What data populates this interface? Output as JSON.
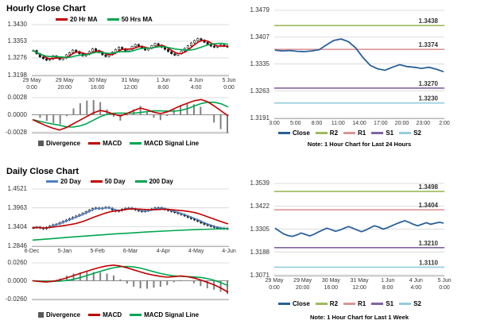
{
  "legends": {
    "hourly_ma": [
      {
        "label": "20 Hr MA",
        "color": "#C00000",
        "type": "line"
      },
      {
        "label": "50 Hrs MA",
        "color": "#00A64F",
        "type": "line"
      }
    ],
    "daily_ma": [
      {
        "label": "20 Day",
        "color": "#4F81BD",
        "type": "line"
      },
      {
        "label": "50 Day",
        "color": "#C00000",
        "type": "line"
      },
      {
        "label": "200 Day",
        "color": "#00A64F",
        "type": "line"
      }
    ],
    "macd": [
      {
        "label": "Divergence",
        "color": "#595959",
        "type": "box"
      },
      {
        "label": "MACD",
        "color": "#C00000",
        "type": "line"
      },
      {
        "label": "MACD Signal Line",
        "color": "#00A64F",
        "type": "line"
      }
    ],
    "pivot": [
      {
        "label": "Close",
        "color": "#2A6099",
        "type": "line"
      },
      {
        "label": "R2",
        "color": "#9BBB59",
        "type": "line"
      },
      {
        "label": "R1",
        "color": "#D99694",
        "type": "line"
      },
      {
        "label": "S1",
        "color": "#8064A2",
        "type": "line"
      },
      {
        "label": "S2",
        "color": "#93CDDD",
        "type": "line"
      }
    ]
  },
  "chart_data": [
    {
      "id": "hourly_price",
      "type": "candlestick",
      "title": "Hourly Close Chart",
      "ylim": [
        1.3198,
        1.343
      ],
      "yticks": [
        1.343,
        1.3353,
        1.3276,
        1.3198
      ],
      "xtick_dates": [
        "29 May",
        "29 May",
        "30 May",
        "31 May",
        "1 Jun",
        "4 Jun",
        "5 Jun"
      ],
      "xtick_times": [
        "0:00",
        "20:00",
        "16:00",
        "12:00",
        "8:00",
        "4:00",
        "0:00"
      ],
      "close": [
        1.331,
        1.3295,
        1.328,
        1.3272,
        1.3265,
        1.327,
        1.3285,
        1.3278,
        1.3268,
        1.3275,
        1.329,
        1.33,
        1.3312,
        1.3305,
        1.3295,
        1.3285,
        1.3292,
        1.3305,
        1.3318,
        1.331,
        1.33,
        1.329,
        1.3282,
        1.329,
        1.3302,
        1.3315,
        1.3325,
        1.3318,
        1.3308,
        1.3315,
        1.3328,
        1.3338,
        1.333,
        1.332,
        1.3312,
        1.332,
        1.3332,
        1.3342,
        1.3335,
        1.3325,
        1.3315,
        1.3305,
        1.3295,
        1.3288,
        1.3295,
        1.3308,
        1.332,
        1.3332,
        1.3345,
        1.3356,
        1.3365,
        1.3358,
        1.3348,
        1.3338,
        1.333,
        1.3325,
        1.333,
        1.3336,
        1.333,
        1.3326
      ],
      "series": [
        {
          "name": "20 Hr MA",
          "color": "#C00000",
          "smooth": 4
        },
        {
          "name": "50 Hrs MA",
          "color": "#00A64F",
          "smooth": 10
        }
      ]
    },
    {
      "id": "hourly_macd",
      "type": "macd",
      "ylim": [
        -0.0028,
        0.0028
      ],
      "yticks": [
        0.0028,
        0.0,
        -0.0028
      ],
      "macd": [
        -0.0008,
        -0.0013,
        -0.0018,
        -0.0022,
        -0.0025,
        -0.0021,
        -0.0015,
        -0.0009,
        -0.0003,
        0.0003,
        0.0007,
        0.0005,
        0.0001,
        -0.0002,
        0.0002,
        0.0007,
        0.0011,
        0.0008,
        0.0004,
        0.0002,
        0.0005,
        0.001,
        0.0015,
        0.0019,
        0.0023,
        0.0025,
        0.0021,
        0.0014,
        0.0006,
        -0.0002
      ]
    },
    {
      "id": "hourly_pivot",
      "type": "line",
      "ylim": [
        1.3191,
        1.3479
      ],
      "yticks": [
        1.3479,
        1.3407,
        1.3335,
        1.3263,
        1.3191
      ],
      "xticks": [
        "3:00",
        "5:00",
        "8:00",
        "11:00",
        "14:00",
        "17:00",
        "20:00",
        "23:00",
        "2:00"
      ],
      "close_color": "#2A6099",
      "close": [
        1.3372,
        1.337,
        1.3371,
        1.3369,
        1.3368,
        1.337,
        1.3373,
        1.3386,
        1.3398,
        1.3402,
        1.3395,
        1.3378,
        1.3352,
        1.3331,
        1.3322,
        1.3318,
        1.3326,
        1.3333,
        1.3328,
        1.3326,
        1.3323,
        1.3326,
        1.3321,
        1.3314
      ],
      "hlines": [
        {
          "name": "R2",
          "value": 1.3438,
          "color": "#9BBB59"
        },
        {
          "name": "R1",
          "value": 1.3374,
          "color": "#D99694"
        },
        {
          "name": "S1",
          "value": 1.327,
          "color": "#8064A2"
        },
        {
          "name": "S2",
          "value": 1.323,
          "color": "#93CDDD"
        }
      ],
      "note": "Note: 1 Hour Chart for Last 24 Hours"
    },
    {
      "id": "daily_price",
      "type": "candlestick",
      "title": "Daily Close Chart",
      "ylim": [
        1.2846,
        1.4521
      ],
      "yticks": [
        1.4521,
        1.3963,
        1.3404,
        1.2846
      ],
      "xticks": [
        "6-Dec",
        "5-Jan",
        "5-Feb",
        "6-Mar",
        "4-Apr",
        "4-May",
        "4-Jun"
      ],
      "close": [
        1.337,
        1.339,
        1.336,
        1.334,
        1.338,
        1.342,
        1.346,
        1.348,
        1.352,
        1.356,
        1.36,
        1.364,
        1.368,
        1.372,
        1.376,
        1.38,
        1.385,
        1.39,
        1.394,
        1.396,
        1.393,
        1.396,
        1.398,
        1.395,
        1.39,
        1.386,
        1.388,
        1.392,
        1.395,
        1.396,
        1.393,
        1.39,
        1.387,
        1.385,
        1.387,
        1.39,
        1.393,
        1.396,
        1.397,
        1.394,
        1.391,
        1.388,
        1.385,
        1.382,
        1.379,
        1.376,
        1.372,
        1.368,
        1.364,
        1.36,
        1.356,
        1.351,
        1.347,
        1.344,
        1.341,
        1.338,
        1.336,
        1.334,
        1.335,
        1.333
      ],
      "series": [
        {
          "name": "20 Day",
          "color": "#4F81BD",
          "smooth": 3
        },
        {
          "name": "50 Day",
          "color": "#C00000",
          "smooth": 14
        },
        {
          "name": "200 Day",
          "color": "#00A64F",
          "values": [
            1.3005,
            1.304,
            1.308,
            1.3115,
            1.315,
            1.3185,
            1.3215,
            1.3245,
            1.327,
            1.3295,
            1.3315,
            1.333,
            1.3345
          ]
        }
      ]
    },
    {
      "id": "daily_macd",
      "type": "macd",
      "ylim": [
        -0.026,
        0.026
      ],
      "yticks": [
        0.026,
        0.0,
        -0.026
      ],
      "macd": [
        0.0,
        -0.001,
        -0.0018,
        -0.0008,
        0.0012,
        0.004,
        0.0072,
        0.0105,
        0.0138,
        0.0168,
        0.0195,
        0.0216,
        0.0228,
        0.0214,
        0.0188,
        0.0158,
        0.0128,
        0.01,
        0.008,
        0.0062,
        0.0052,
        0.006,
        0.007,
        0.0058,
        0.0038,
        0.0008,
        -0.0025,
        -0.0062,
        -0.011,
        -0.0168
      ]
    },
    {
      "id": "weekly_pivot",
      "type": "line",
      "ylim": [
        1.3071,
        1.3539
      ],
      "yticks": [
        1.3539,
        1.3422,
        1.3305,
        1.3188,
        1.3071
      ],
      "xtick_dates": [
        "29 May",
        "29 May",
        "30 May",
        "31 May",
        "1 Jun",
        "4 Jun",
        "5 Jun"
      ],
      "xtick_times": [
        "0:00",
        "20:00",
        "16:00",
        "12:00",
        "8:00",
        "4:00",
        "0:00"
      ],
      "close_color": "#2A6099",
      "close": [
        1.331,
        1.3295,
        1.328,
        1.3272,
        1.3268,
        1.3275,
        1.3285,
        1.3278,
        1.327,
        1.3278,
        1.329,
        1.33,
        1.331,
        1.3302,
        1.3294,
        1.33,
        1.331,
        1.3318,
        1.331,
        1.33,
        1.3292,
        1.33,
        1.3312,
        1.3322,
        1.3315,
        1.3305,
        1.3312,
        1.3322,
        1.3332,
        1.334,
        1.3348,
        1.334,
        1.333,
        1.3322,
        1.333,
        1.3338,
        1.333,
        1.3335,
        1.334,
        1.3336
      ],
      "hlines": [
        {
          "name": "R2",
          "value": 1.3498,
          "color": "#9BBB59"
        },
        {
          "name": "R1",
          "value": 1.3404,
          "color": "#D99694"
        },
        {
          "name": "S1",
          "value": 1.321,
          "color": "#8064A2"
        },
        {
          "name": "S2",
          "value": 1.311,
          "color": "#93CDDD"
        }
      ],
      "note": "Note: 1 Hour Chart for Last 1 Week"
    }
  ]
}
